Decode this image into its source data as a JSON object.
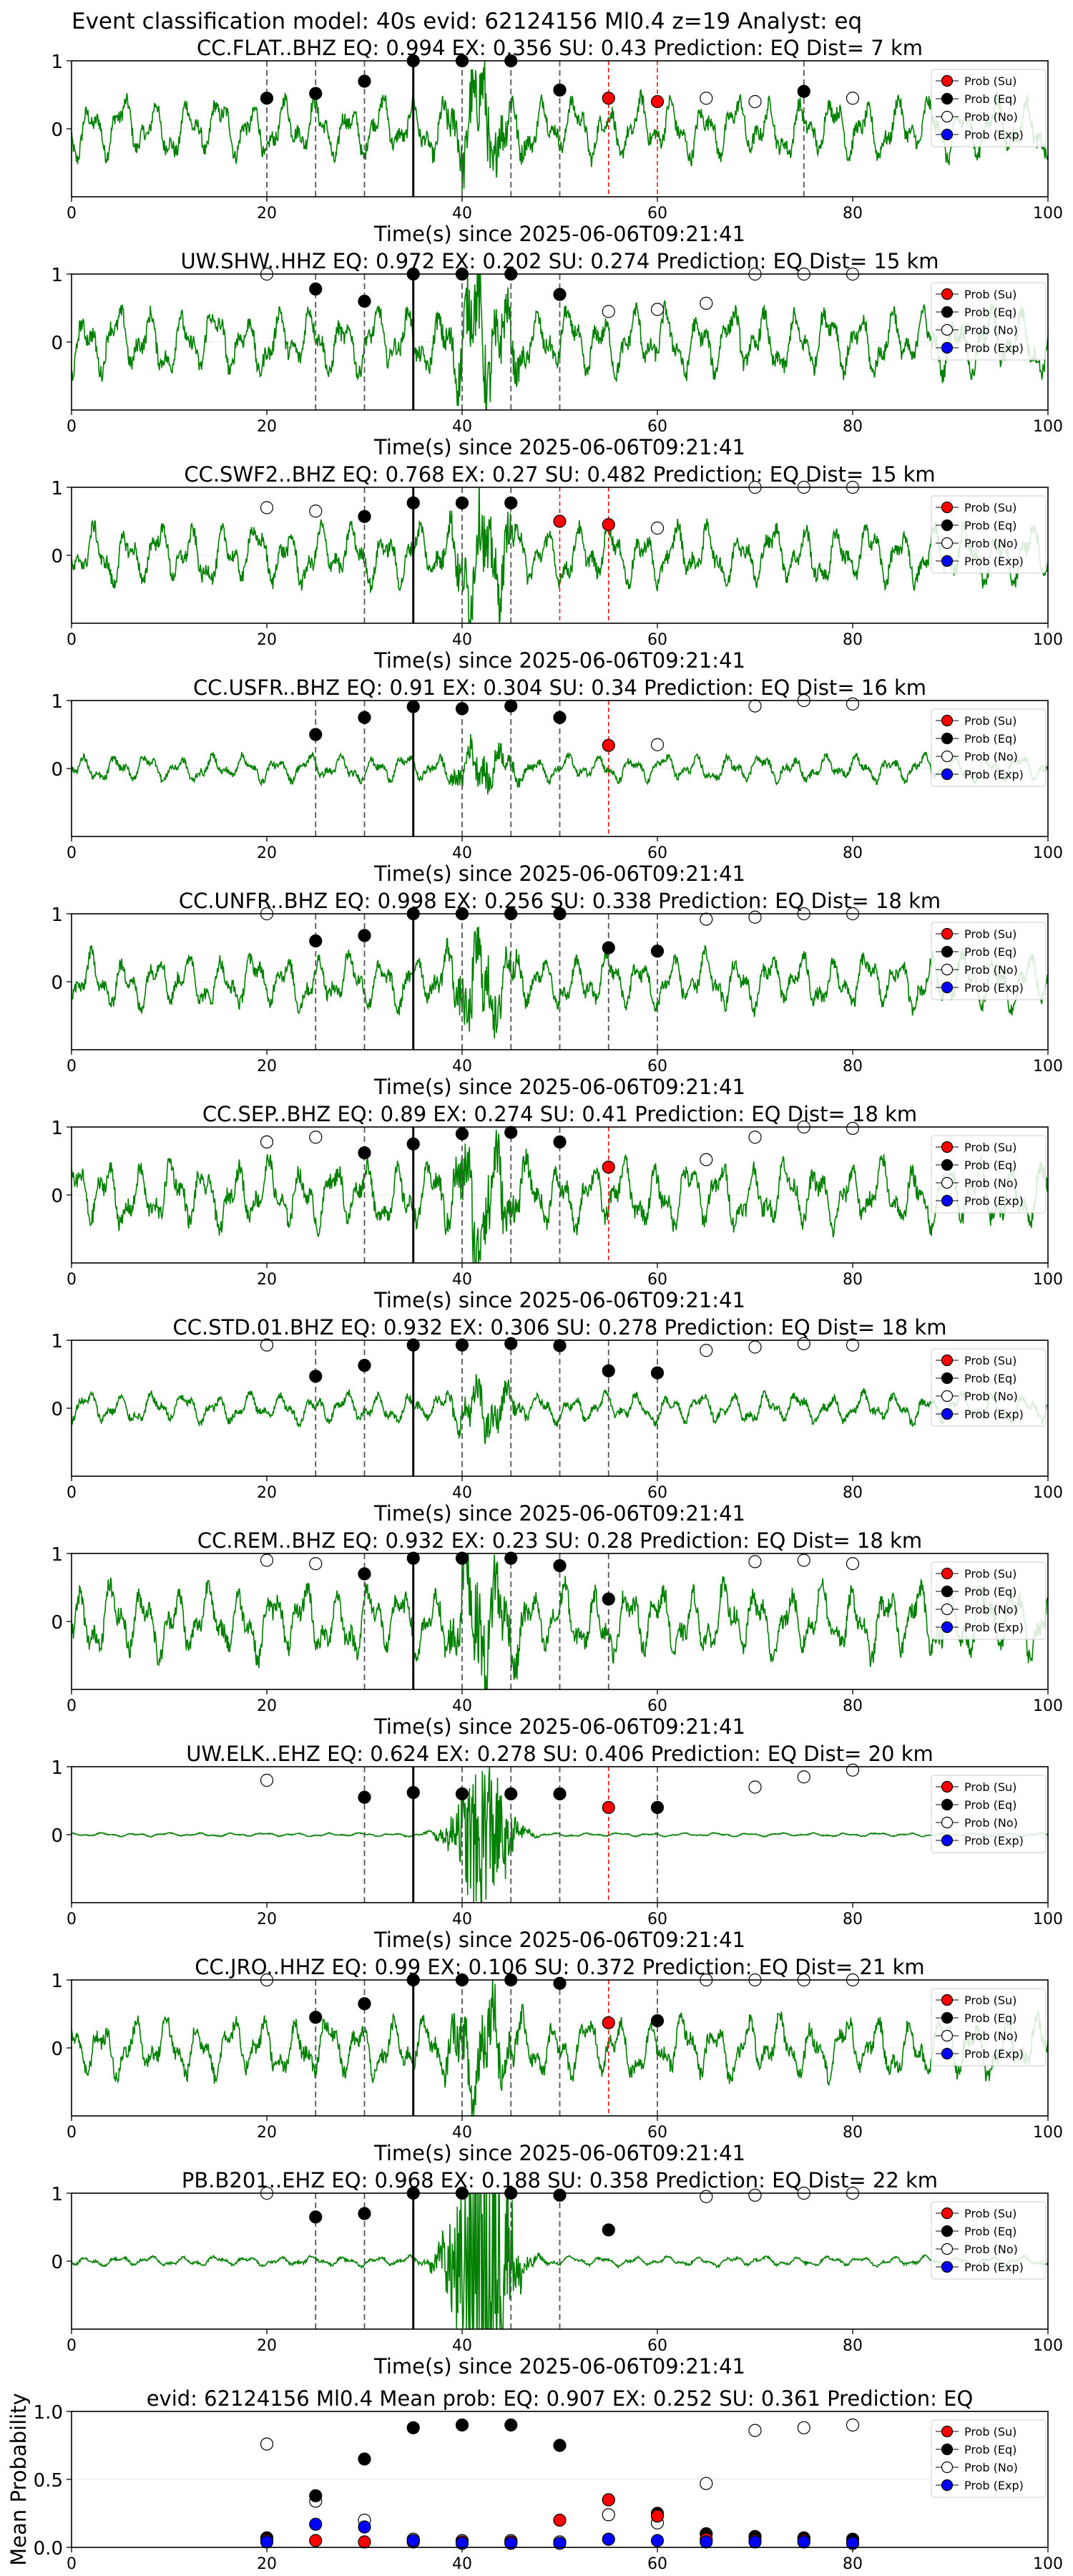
{
  "figure_title": "Event classification model: 40s evid: 62124156 Ml0.4 z=19 Analyst: eq",
  "time_label": "Time(s) since 2025-06-06T09:21:41",
  "legend_labels": [
    "Prob (Su)",
    "Prob (Eq)",
    "Prob (No)",
    "Prob (Exp)"
  ],
  "colors": {
    "trace": "#008000",
    "su": "#ff0000",
    "eq": "#000000",
    "no": "#ffffff",
    "exp": "#0000ff"
  },
  "chart_data": [
    {
      "type": "scatter",
      "title": "CC.FLAT..BHZ   EQ: 0.994   EX: 0.356   SU: 0.43   Prediction: EQ    Dist= 7 km",
      "xlim": [
        0,
        100
      ],
      "ylim": [
        -1,
        1
      ],
      "xticks": [
        0,
        20,
        40,
        60,
        80,
        100
      ],
      "yticks": [
        0,
        1
      ],
      "trace_amp": 0.5,
      "markers": {
        "eq": [
          [
            20,
            0.45
          ],
          [
            25,
            0.52
          ],
          [
            30,
            0.7
          ],
          [
            35,
            1.0
          ],
          [
            40,
            1.0
          ],
          [
            45,
            1.0
          ],
          [
            50,
            0.57
          ],
          [
            75,
            0.55
          ]
        ],
        "su": [
          [
            55,
            0.45
          ],
          [
            60,
            0.4
          ]
        ],
        "no": [
          [
            65,
            0.45
          ],
          [
            70,
            0.4
          ],
          [
            80,
            0.45
          ]
        ],
        "exp": []
      },
      "vlines": {
        "dashed": [
          20,
          25,
          30,
          40,
          45,
          50,
          75
        ],
        "red": [
          55,
          60
        ],
        "solid": [
          35
        ]
      }
    },
    {
      "type": "scatter",
      "title": "UW.SHW..HHZ   EQ: 0.972   EX: 0.202   SU: 0.274   Prediction: EQ    Dist= 15 km",
      "xlim": [
        0,
        100
      ],
      "ylim": [
        -1,
        1
      ],
      "xticks": [
        0,
        20,
        40,
        60,
        80,
        100
      ],
      "yticks": [
        0,
        1
      ],
      "trace_amp": 0.55,
      "markers": {
        "eq": [
          [
            25,
            0.78
          ],
          [
            30,
            0.6
          ],
          [
            35,
            1.0
          ],
          [
            40,
            1.0
          ],
          [
            45,
            1.0
          ],
          [
            50,
            0.7
          ]
        ],
        "su": [],
        "no": [
          [
            20,
            1.0
          ],
          [
            55,
            0.45
          ],
          [
            60,
            0.48
          ],
          [
            65,
            0.57
          ],
          [
            70,
            1.0
          ],
          [
            75,
            1.0
          ],
          [
            80,
            1.0
          ]
        ],
        "exp": []
      },
      "vlines": {
        "dashed": [
          25,
          30,
          40,
          45,
          50
        ],
        "red": [],
        "solid": [
          35
        ]
      }
    },
    {
      "type": "scatter",
      "title": "CC.SWF2..BHZ   EQ: 0.768   EX: 0.27   SU: 0.482   Prediction: EQ    Dist= 15 km",
      "xlim": [
        0,
        100
      ],
      "ylim": [
        -1,
        1
      ],
      "xticks": [
        0,
        20,
        40,
        60,
        80,
        100
      ],
      "yticks": [
        0,
        1
      ],
      "trace_amp": 0.5,
      "markers": {
        "eq": [
          [
            30,
            0.57
          ],
          [
            35,
            0.77
          ],
          [
            40,
            0.77
          ],
          [
            45,
            0.77
          ]
        ],
        "su": [
          [
            50,
            0.5
          ],
          [
            55,
            0.45
          ]
        ],
        "no": [
          [
            20,
            0.7
          ],
          [
            25,
            0.65
          ],
          [
            60,
            0.4
          ],
          [
            70,
            1.0
          ],
          [
            75,
            1.0
          ],
          [
            80,
            1.0
          ]
        ],
        "exp": []
      },
      "vlines": {
        "dashed": [
          30,
          40,
          45
        ],
        "red": [
          50,
          55
        ],
        "solid": [
          35
        ]
      }
    },
    {
      "type": "scatter",
      "title": "CC.USFR..BHZ   EQ: 0.91   EX: 0.304   SU: 0.34   Prediction: EQ    Dist= 16 km",
      "xlim": [
        0,
        100
      ],
      "ylim": [
        -1,
        1
      ],
      "xticks": [
        0,
        20,
        40,
        60,
        80,
        100
      ],
      "yticks": [
        0,
        1
      ],
      "trace_amp": 0.22,
      "markers": {
        "eq": [
          [
            25,
            0.5
          ],
          [
            30,
            0.75
          ],
          [
            35,
            0.91
          ],
          [
            40,
            0.88
          ],
          [
            45,
            0.92
          ],
          [
            50,
            0.75
          ]
        ],
        "su": [
          [
            55,
            0.34
          ]
        ],
        "no": [
          [
            60,
            0.35
          ],
          [
            70,
            0.92
          ],
          [
            75,
            1.0
          ],
          [
            80,
            0.95
          ]
        ],
        "exp": []
      },
      "vlines": {
        "dashed": [
          25,
          30,
          40,
          45,
          50
        ],
        "red": [
          55
        ],
        "solid": [
          35
        ]
      }
    },
    {
      "type": "scatter",
      "title": "CC.UNFR..BHZ   EQ: 0.998   EX: 0.256   SU: 0.338   Prediction: EQ    Dist= 18 km",
      "xlim": [
        0,
        100
      ],
      "ylim": [
        -1,
        1
      ],
      "xticks": [
        0,
        20,
        40,
        60,
        80,
        100
      ],
      "yticks": [
        0,
        1
      ],
      "trace_amp": 0.45,
      "markers": {
        "eq": [
          [
            25,
            0.6
          ],
          [
            30,
            0.68
          ],
          [
            35,
            1.0
          ],
          [
            40,
            1.0
          ],
          [
            45,
            1.0
          ],
          [
            50,
            1.0
          ],
          [
            55,
            0.5
          ],
          [
            60,
            0.45
          ]
        ],
        "su": [],
        "no": [
          [
            20,
            1.0
          ],
          [
            65,
            0.92
          ],
          [
            70,
            0.95
          ],
          [
            75,
            1.0
          ],
          [
            80,
            1.0
          ]
        ],
        "exp": []
      },
      "vlines": {
        "dashed": [
          25,
          30,
          40,
          45,
          50,
          55,
          60
        ],
        "red": [],
        "solid": [
          35
        ]
      }
    },
    {
      "type": "scatter",
      "title": "CC.SEP..BHZ   EQ: 0.89   EX: 0.274   SU: 0.41   Prediction: EQ    Dist= 18 km",
      "xlim": [
        0,
        100
      ],
      "ylim": [
        -1,
        1
      ],
      "xticks": [
        0,
        20,
        40,
        60,
        80,
        100
      ],
      "yticks": [
        0,
        1
      ],
      "trace_amp": 0.55,
      "markers": {
        "eq": [
          [
            30,
            0.62
          ],
          [
            35,
            0.75
          ],
          [
            40,
            0.9
          ],
          [
            45,
            0.92
          ],
          [
            50,
            0.78
          ]
        ],
        "su": [
          [
            55,
            0.41
          ]
        ],
        "no": [
          [
            20,
            0.78
          ],
          [
            25,
            0.85
          ],
          [
            65,
            0.52
          ],
          [
            70,
            0.85
          ],
          [
            75,
            1.0
          ],
          [
            80,
            0.98
          ]
        ],
        "exp": []
      },
      "vlines": {
        "dashed": [
          30,
          40,
          45,
          50
        ],
        "red": [
          55
        ],
        "solid": [
          35
        ]
      }
    },
    {
      "type": "scatter",
      "title": "CC.STD.01.BHZ   EQ: 0.932   EX: 0.306   SU: 0.278   Prediction: EQ    Dist= 18 km",
      "xlim": [
        0,
        100
      ],
      "ylim": [
        -1,
        1
      ],
      "xticks": [
        0,
        20,
        40,
        60,
        80,
        100
      ],
      "yticks": [
        0,
        1
      ],
      "trace_amp": 0.25,
      "markers": {
        "eq": [
          [
            25,
            0.47
          ],
          [
            30,
            0.63
          ],
          [
            35,
            0.93
          ],
          [
            40,
            0.93
          ],
          [
            45,
            0.95
          ],
          [
            50,
            0.92
          ],
          [
            55,
            0.55
          ],
          [
            60,
            0.52
          ]
        ],
        "su": [],
        "no": [
          [
            20,
            0.93
          ],
          [
            65,
            0.85
          ],
          [
            70,
            0.9
          ],
          [
            75,
            0.95
          ],
          [
            80,
            0.93
          ]
        ],
        "exp": []
      },
      "vlines": {
        "dashed": [
          25,
          30,
          40,
          45,
          50,
          55,
          60
        ],
        "red": [],
        "solid": [
          35
        ]
      }
    },
    {
      "type": "scatter",
      "title": "CC.REM..BHZ   EQ: 0.932   EX: 0.23   SU: 0.28   Prediction: EQ    Dist= 18 km",
      "xlim": [
        0,
        100
      ],
      "ylim": [
        -1,
        1
      ],
      "xticks": [
        0,
        20,
        40,
        60,
        80,
        100
      ],
      "yticks": [
        0,
        1
      ],
      "trace_amp": 0.6,
      "markers": {
        "eq": [
          [
            30,
            0.7
          ],
          [
            35,
            0.93
          ],
          [
            40,
            0.93
          ],
          [
            45,
            0.93
          ],
          [
            50,
            0.82
          ],
          [
            55,
            0.33
          ]
        ],
        "su": [],
        "no": [
          [
            20,
            0.9
          ],
          [
            25,
            0.85
          ],
          [
            70,
            0.88
          ],
          [
            75,
            0.9
          ],
          [
            80,
            0.85
          ]
        ],
        "exp": []
      },
      "vlines": {
        "dashed": [
          30,
          40,
          45,
          50,
          55
        ],
        "red": [],
        "solid": [
          35
        ]
      }
    },
    {
      "type": "scatter",
      "title": "UW.ELK..EHZ   EQ: 0.624   EX: 0.278   SU: 0.406   Prediction: EQ    Dist= 20 km",
      "xlim": [
        0,
        100
      ],
      "ylim": [
        -1,
        1
      ],
      "xticks": [
        0,
        20,
        40,
        60,
        80,
        100
      ],
      "yticks": [
        0,
        1
      ],
      "trace_amp": 0.03,
      "markers": {
        "eq": [
          [
            30,
            0.55
          ],
          [
            35,
            0.62
          ],
          [
            40,
            0.6
          ],
          [
            45,
            0.6
          ],
          [
            50,
            0.6
          ],
          [
            60,
            0.4
          ]
        ],
        "su": [
          [
            55,
            0.4
          ]
        ],
        "no": [
          [
            20,
            0.8
          ],
          [
            70,
            0.7
          ],
          [
            75,
            0.85
          ],
          [
            80,
            0.95
          ]
        ],
        "exp": []
      },
      "vlines": {
        "dashed": [
          30,
          40,
          45,
          50,
          60
        ],
        "red": [
          55
        ],
        "solid": [
          35
        ]
      }
    },
    {
      "type": "scatter",
      "title": "CC.JRO..HHZ   EQ: 0.99   EX: 0.106   SU: 0.372   Prediction: EQ    Dist= 21 km",
      "xlim": [
        0,
        100
      ],
      "ylim": [
        -1,
        1
      ],
      "xticks": [
        0,
        20,
        40,
        60,
        80,
        100
      ],
      "yticks": [
        0,
        1
      ],
      "trace_amp": 0.5,
      "markers": {
        "eq": [
          [
            25,
            0.45
          ],
          [
            30,
            0.65
          ],
          [
            35,
            1.0
          ],
          [
            40,
            1.0
          ],
          [
            45,
            1.0
          ],
          [
            50,
            0.95
          ],
          [
            60,
            0.4
          ]
        ],
        "su": [
          [
            55,
            0.37
          ]
        ],
        "no": [
          [
            20,
            1.0
          ],
          [
            65,
            1.0
          ],
          [
            70,
            1.0
          ],
          [
            75,
            1.0
          ],
          [
            80,
            1.0
          ]
        ],
        "exp": []
      },
      "vlines": {
        "dashed": [
          25,
          30,
          40,
          45,
          50,
          60
        ],
        "red": [
          55
        ],
        "solid": [
          35
        ]
      }
    },
    {
      "type": "scatter",
      "title": "PB.B201..EHZ   EQ: 0.968   EX: 0.188   SU: 0.358   Prediction: EQ    Dist= 22 km",
      "xlim": [
        0,
        100
      ],
      "ylim": [
        -1,
        1
      ],
      "xticks": [
        0,
        20,
        40,
        60,
        80,
        100
      ],
      "yticks": [
        0,
        1
      ],
      "trace_amp": 0.08,
      "markers": {
        "eq": [
          [
            25,
            0.65
          ],
          [
            30,
            0.7
          ],
          [
            35,
            1.0
          ],
          [
            40,
            1.0
          ],
          [
            45,
            1.0
          ],
          [
            50,
            0.97
          ],
          [
            55,
            0.46
          ]
        ],
        "su": [],
        "no": [
          [
            20,
            1.0
          ],
          [
            65,
            0.95
          ],
          [
            70,
            0.97
          ],
          [
            75,
            1.0
          ],
          [
            80,
            1.0
          ]
        ],
        "exp": []
      },
      "vlines": {
        "dashed": [
          25,
          30,
          45,
          50
        ],
        "red": [],
        "solid": [
          35
        ]
      }
    },
    {
      "type": "scatter",
      "title": "evid: 62124156  Ml0.4   Mean prob:   EQ: 0.907  EX: 0.252  SU: 0.361   Prediction: EQ",
      "ylabel": "Mean Probability",
      "xlim": [
        0,
        100
      ],
      "ylim": [
        0,
        1
      ],
      "xticks": [
        0,
        20,
        40,
        60,
        80,
        100
      ],
      "yticks": [
        0.0,
        0.5,
        1.0
      ],
      "yticklabels": [
        "0.0",
        "0.5",
        "1.0"
      ],
      "markers": {
        "eq": [
          [
            20,
            0.07
          ],
          [
            25,
            0.38
          ],
          [
            30,
            0.65
          ],
          [
            35,
            0.88
          ],
          [
            40,
            0.9
          ],
          [
            45,
            0.9
          ],
          [
            50,
            0.75
          ],
          [
            55,
            0.35
          ],
          [
            60,
            0.25
          ],
          [
            65,
            0.1
          ],
          [
            70,
            0.08
          ],
          [
            75,
            0.07
          ],
          [
            80,
            0.06
          ]
        ],
        "su": [
          [
            20,
            0.05
          ],
          [
            25,
            0.05
          ],
          [
            30,
            0.04
          ],
          [
            35,
            0.04
          ],
          [
            40,
            0.04
          ],
          [
            45,
            0.04
          ],
          [
            50,
            0.2
          ],
          [
            55,
            0.35
          ],
          [
            60,
            0.23
          ],
          [
            65,
            0.06
          ],
          [
            70,
            0.05
          ],
          [
            75,
            0.05
          ],
          [
            80,
            0.03
          ]
        ],
        "no": [
          [
            20,
            0.76
          ],
          [
            25,
            0.34
          ],
          [
            30,
            0.2
          ],
          [
            35,
            0.06
          ],
          [
            40,
            0.05
          ],
          [
            45,
            0.05
          ],
          [
            50,
            0.04
          ],
          [
            55,
            0.24
          ],
          [
            60,
            0.18
          ],
          [
            65,
            0.47
          ],
          [
            70,
            0.86
          ],
          [
            75,
            0.88
          ],
          [
            80,
            0.9
          ]
        ],
        "exp": [
          [
            20,
            0.04
          ],
          [
            25,
            0.17
          ],
          [
            30,
            0.15
          ],
          [
            35,
            0.05
          ],
          [
            40,
            0.03
          ],
          [
            45,
            0.03
          ],
          [
            50,
            0.03
          ],
          [
            55,
            0.06
          ],
          [
            60,
            0.05
          ],
          [
            65,
            0.04
          ],
          [
            70,
            0.04
          ],
          [
            75,
            0.04
          ],
          [
            80,
            0.03
          ]
        ]
      },
      "vlines": {
        "dashed": [],
        "red": [],
        "solid": []
      }
    }
  ]
}
